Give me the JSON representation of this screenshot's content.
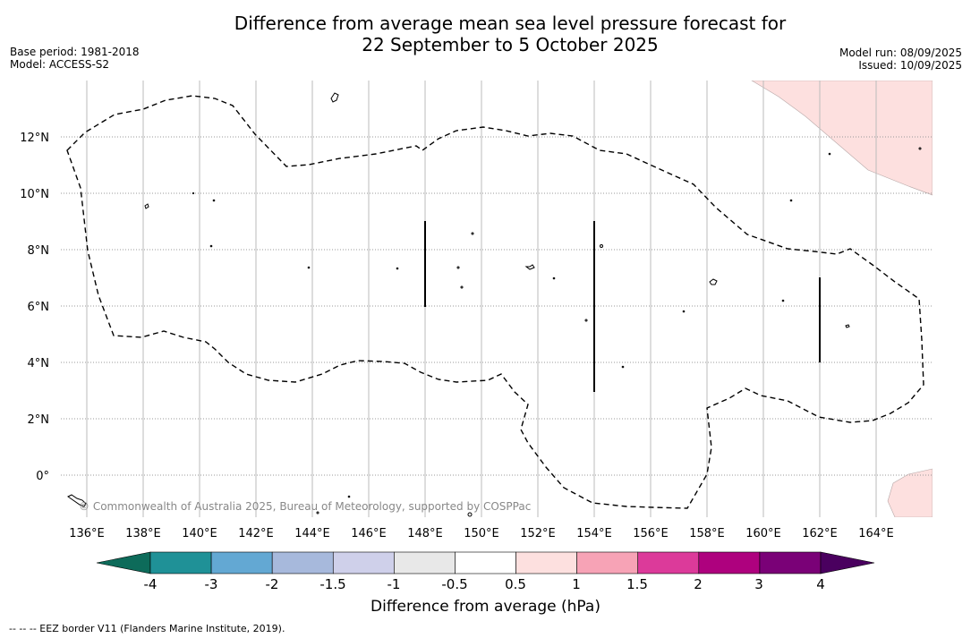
{
  "title": {
    "line1": "Difference from average mean sea level pressure forecast for",
    "line2": "22 September to 5 October 2025"
  },
  "meta_left": {
    "base_period": "Base period: 1981-2018",
    "model": "Model: ACCESS-S2"
  },
  "meta_right": {
    "model_run": "Model run: 08/09/2025",
    "issued": "Issued: 10/09/2025"
  },
  "map": {
    "lon_labels": [
      "136°E",
      "138°E",
      "140°E",
      "142°E",
      "144°E",
      "146°E",
      "148°E",
      "150°E",
      "152°E",
      "154°E",
      "156°E",
      "158°E",
      "160°E",
      "162°E",
      "164°E"
    ],
    "lat_labels": [
      "12°N",
      "10°N",
      "8°N",
      "6°N",
      "4°N",
      "2°N",
      "0°"
    ],
    "copyright": "© Commonwealth of Australia 2025, Bureau of Meteorology, supported by COSPPac",
    "anomaly_regions": [
      {
        "category": "0.5 to 1",
        "color": "#fde0df",
        "location": "north-east corner"
      },
      {
        "category": "0.5 to 1",
        "color": "#fde0df",
        "location": "south-east corner"
      }
    ]
  },
  "colorbar": {
    "tick_labels": [
      "-4",
      "-3",
      "-2",
      "-1.5",
      "-1",
      "-0.5",
      "0.5",
      "1",
      "1.5",
      "2",
      "3",
      "4"
    ],
    "colors": [
      "#1f9197",
      "#63a8d3",
      "#a7b9dc",
      "#cfd0ea",
      "#e8e8e8",
      "#ffffff",
      "#fde0df",
      "#f7a3b6",
      "#dc3a9a",
      "#ae017e",
      "#7a0177"
    ],
    "under_color": "#0d6b5a",
    "over_color": "#4a005f",
    "label": "Difference from average (hPa)"
  },
  "footer": "--  --  -- EEZ border V11 (Flanders Marine Institute, 2019)."
}
